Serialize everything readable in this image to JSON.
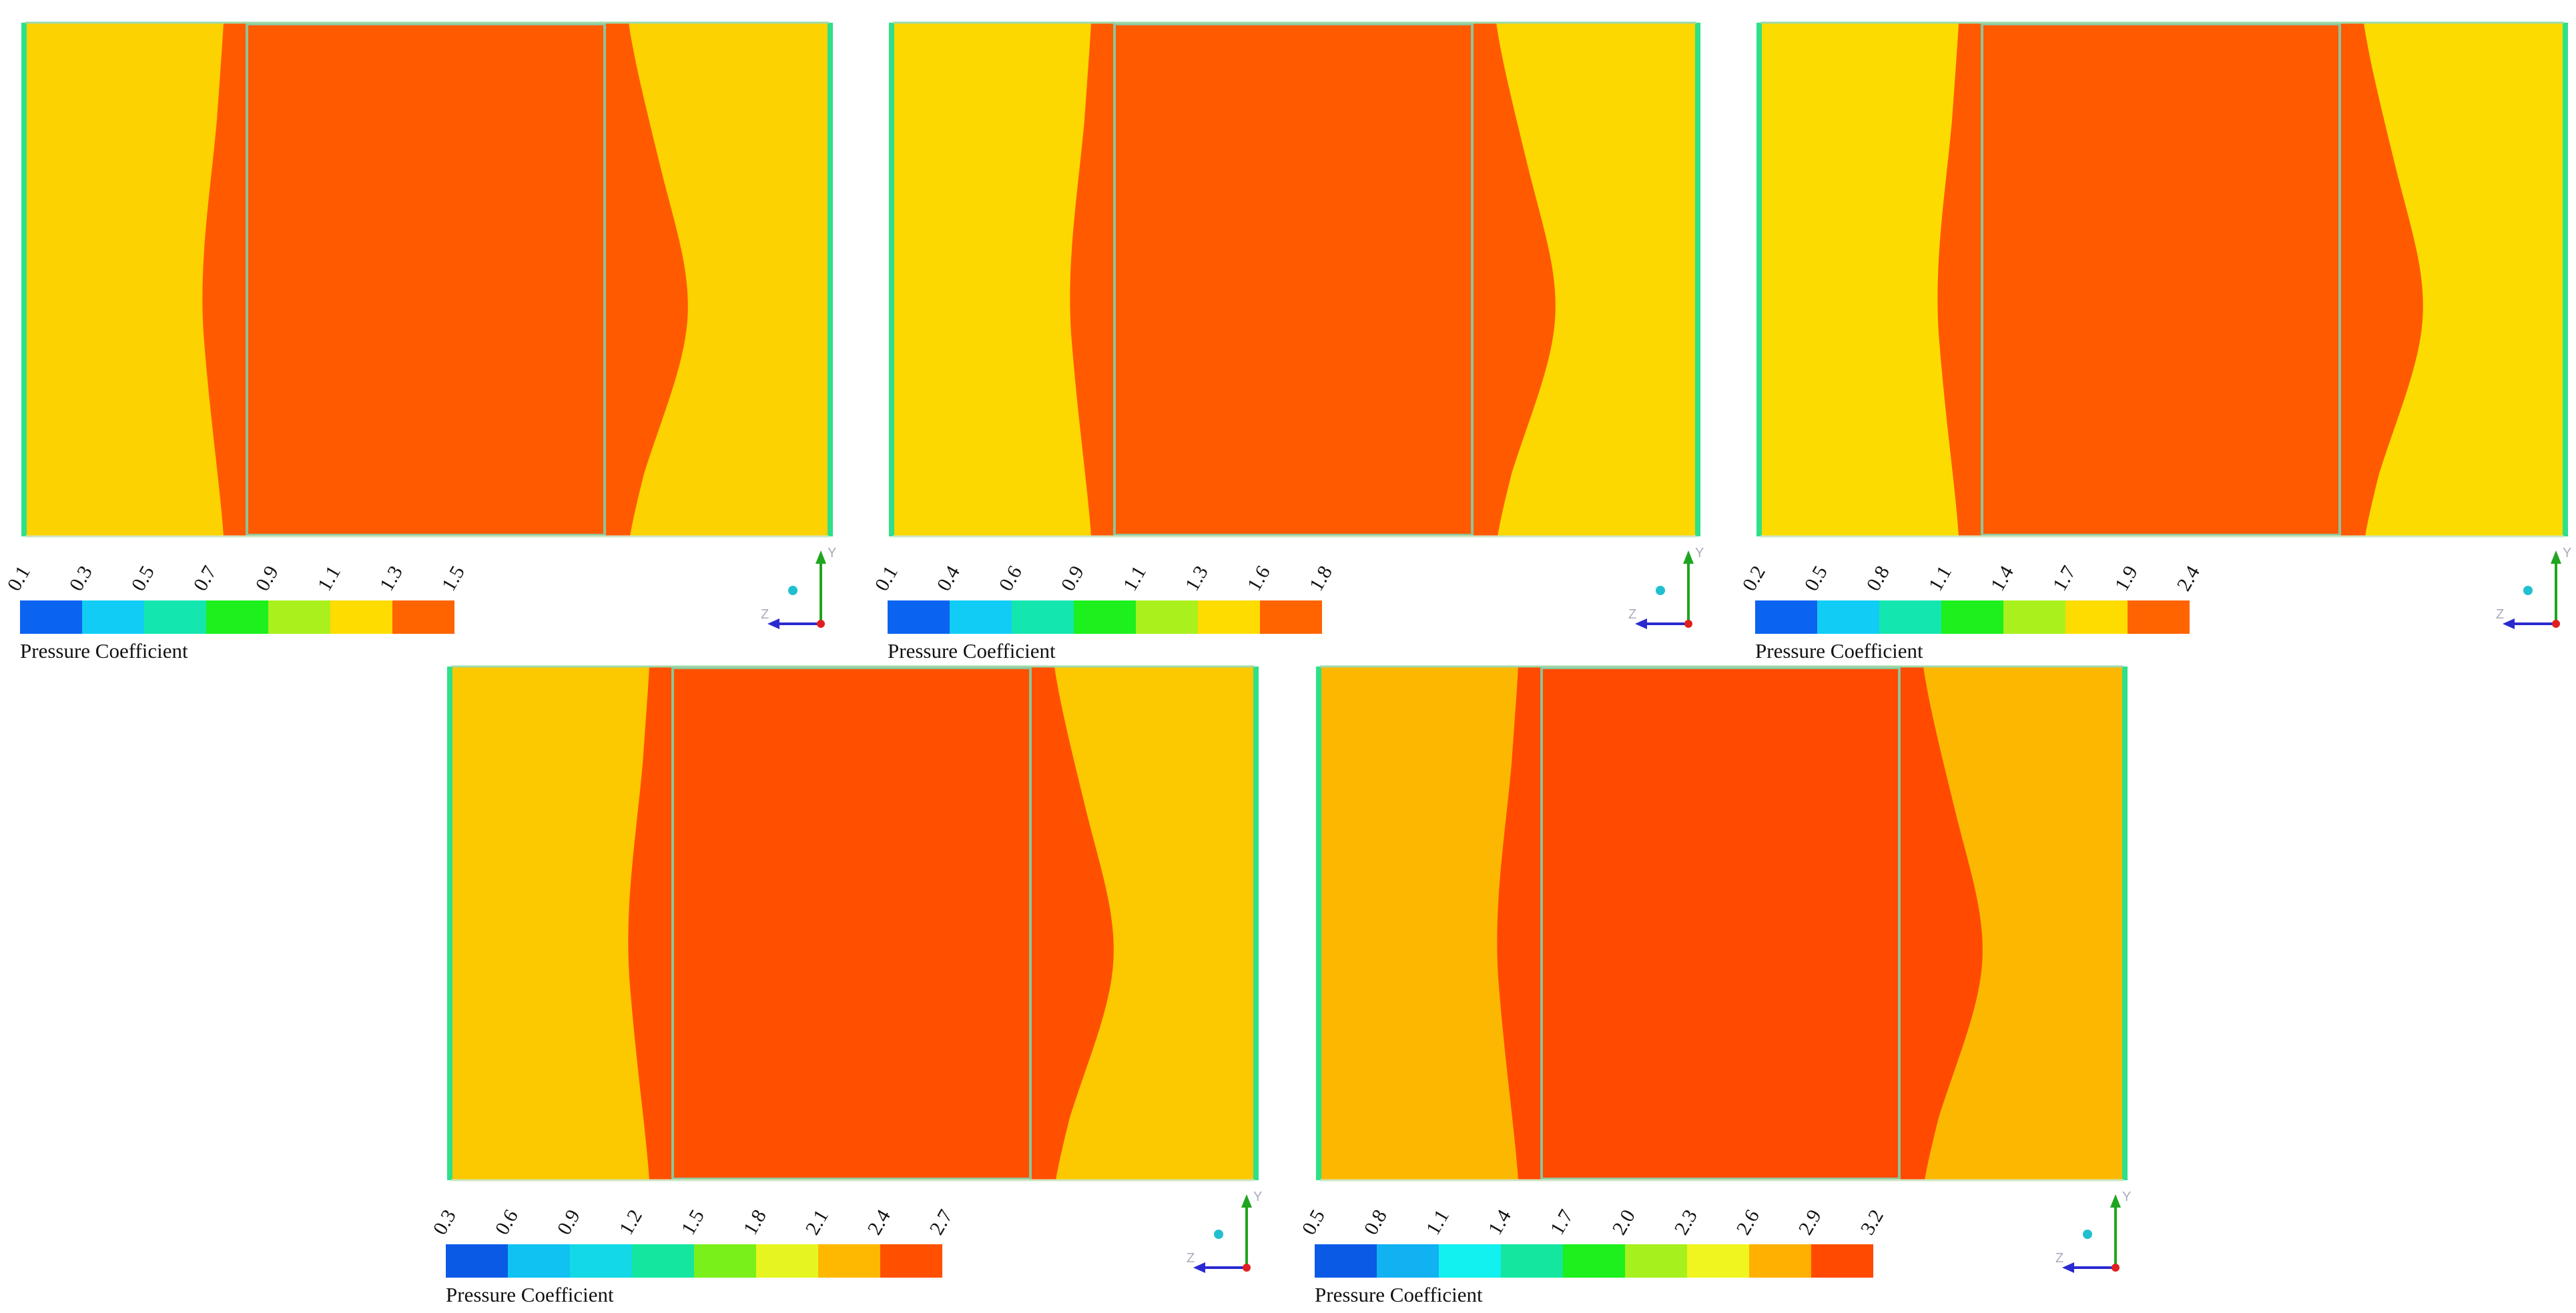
{
  "panels": [
    {
      "ticks": [
        "0.1",
        "0.3",
        "0.5",
        "0.7",
        "0.9",
        "1.1",
        "1.3",
        "1.5"
      ],
      "colors": [
        "#0a64f0",
        "#11cdf5",
        "#14e6b0",
        "#1df01d",
        "#aaf01d",
        "#ffdc00",
        "#ff6400"
      ],
      "field_color": "#fcd200",
      "core_color": "#ff5a00",
      "legend_title": "Pressure Coefficient"
    },
    {
      "ticks": [
        "0.1",
        "0.4",
        "0.6",
        "0.9",
        "1.1",
        "1.3",
        "1.6",
        "1.8"
      ],
      "colors": [
        "#0a64f0",
        "#11cdf5",
        "#14e6b0",
        "#1df01d",
        "#aaf01d",
        "#ffdc00",
        "#ff6400"
      ],
      "field_color": "#fcd800",
      "core_color": "#ff5a00",
      "legend_title": "Pressure Coefficient"
    },
    {
      "ticks": [
        "0.2",
        "0.5",
        "0.8",
        "1.1",
        "1.4",
        "1.7",
        "1.9",
        "2.4"
      ],
      "colors": [
        "#0a64f0",
        "#11cdf5",
        "#14e6b0",
        "#1df01d",
        "#aaf01d",
        "#ffdc00",
        "#ff6400"
      ],
      "field_color": "#fcdc00",
      "core_color": "#ff5a00",
      "legend_title": "Pressure Coefficient"
    },
    {
      "ticks": [
        "0.3",
        "0.6",
        "0.9",
        "1.2",
        "1.5",
        "1.8",
        "2.1",
        "2.4",
        "2.7"
      ],
      "colors": [
        "#0a5ae6",
        "#10c2f2",
        "#13d8e6",
        "#14e6a0",
        "#7af01a",
        "#e6f51f",
        "#ffb800",
        "#ff5000"
      ],
      "field_color": "#fcc800",
      "core_color": "#ff5000",
      "legend_title": "Pressure Coefficient"
    },
    {
      "ticks": [
        "0.5",
        "0.8",
        "1.1",
        "1.4",
        "1.7",
        "2.0",
        "2.3",
        "2.6",
        "2.9",
        "3.2"
      ],
      "colors": [
        "#0a5ae6",
        "#10b2f2",
        "#13f0f0",
        "#14e6a0",
        "#1df01d",
        "#a6f01d",
        "#f0f51f",
        "#ffb000",
        "#ff4a00"
      ],
      "field_color": "#fcb800",
      "core_color": "#ff4a00",
      "legend_title": "Pressure Coefficient"
    }
  ]
}
